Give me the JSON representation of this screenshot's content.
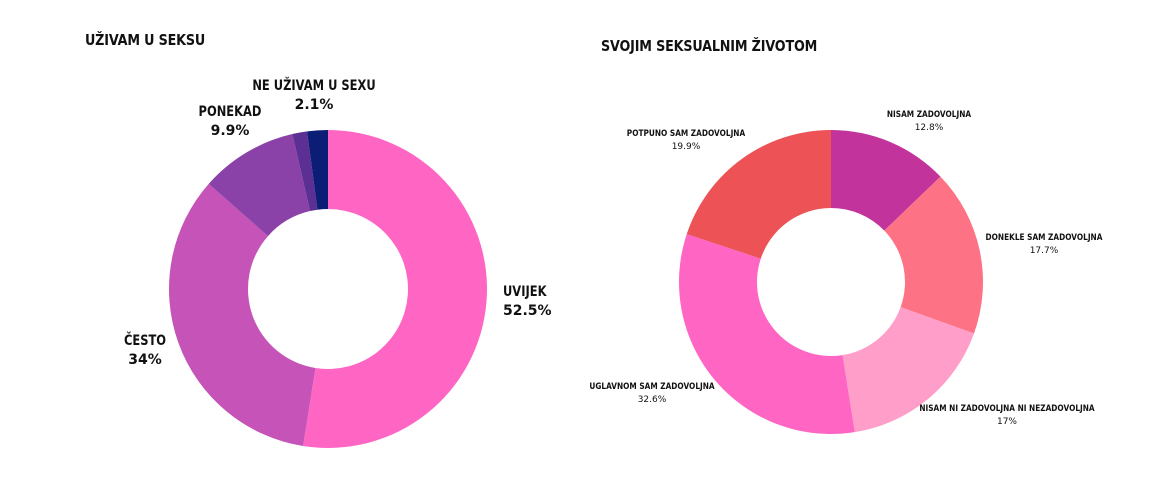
{
  "chart_data": [
    {
      "type": "pie",
      "title": "UŽIVAM U SEKSU",
      "slices": [
        {
          "label": "UVIJEK",
          "value": 52.5,
          "value_label": "52.5%",
          "color": "#ff66c4"
        },
        {
          "label": "ČESTO",
          "value": 34,
          "value_label": "34%",
          "color": "#c553b8"
        },
        {
          "label": "PONEKAD",
          "value": 9.9,
          "value_label": "9.9%",
          "color": "#8a41a8"
        },
        {
          "label": "",
          "value": 1.5,
          "value_label": "",
          "color": "#5b2f93"
        },
        {
          "label": "NE UŽIVAM U SEXU",
          "value": 2.1,
          "value_label": "2.1%",
          "color": "#0b1d74"
        }
      ]
    },
    {
      "type": "pie",
      "title": "SVOJIM SEKSUALNIM ŽIVOTOM",
      "slices": [
        {
          "label": "NISAM ZADOVOLJNA",
          "value": 12.8,
          "value_label": "12.8%",
          "color": "#c2349b"
        },
        {
          "label": "DONEKLE SAM ZADOVOLJNA",
          "value": 17.7,
          "value_label": "17.7%",
          "color": "#fd7385"
        },
        {
          "label": "NISAM NI ZADOVOLJNA NI NEZADOVOLJNA",
          "value": 17,
          "value_label": "17%",
          "color": "#ff9ec8"
        },
        {
          "label": "UGLAVNOM SAM ZADOVOLJNA",
          "value": 32.6,
          "value_label": "32.6%",
          "color": "#ff66c4"
        },
        {
          "label": "POTPUNO SAM ZADOVOLJNA",
          "value": 19.9,
          "value_label": "19.9%",
          "color": "#ec5256"
        }
      ]
    }
  ]
}
